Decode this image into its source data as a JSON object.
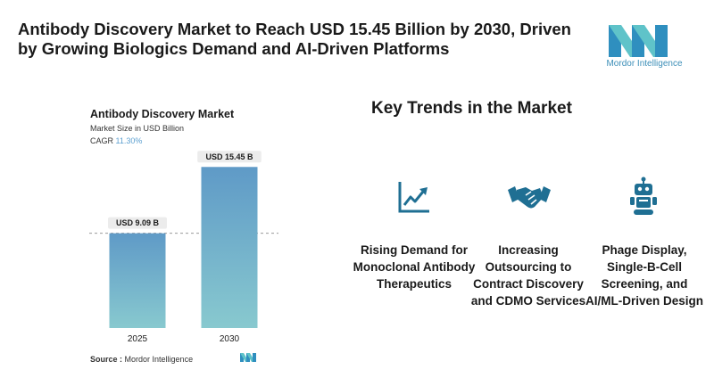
{
  "header": {
    "title": "Antibody Discovery Market to Reach USD 15.45 Billion by 2030, Driven by Growing Biologics Demand and AI-Driven Platforms",
    "logo_text": "Mordor Intelligence"
  },
  "chart_panel": {
    "title": "Antibody Discovery Market",
    "subtitle": "Market Size in USD Billion",
    "cagr_label": "CAGR",
    "cagr_value": "11.30%",
    "source_label": "Source :",
    "source_value": "Mordor Intelligence"
  },
  "chart_data": {
    "type": "bar",
    "title": "Antibody Discovery Market",
    "ylabel": "Market Size in USD Billion",
    "categories": [
      "2025",
      "2030"
    ],
    "values": [
      9.09,
      15.45
    ],
    "data_labels": [
      "USD 9.09 B",
      "USD 15.45 B"
    ],
    "ylim": [
      0,
      16.5
    ],
    "reference_line": 9.09,
    "grid": false
  },
  "trends": {
    "title": "Key Trends in the Market",
    "items": [
      {
        "icon": "chart-growth-icon",
        "label": "Rising Demand for Monoclonal Antibody Therapeutics"
      },
      {
        "icon": "handshake-icon",
        "label": "Increasing Outsourcing to Contract Discovery and CDMO Services"
      },
      {
        "icon": "robot-icon",
        "label": "Phage Display, Single-B-Cell Screening, and AI/ML-Driven Design"
      }
    ]
  },
  "colors": {
    "bar_top": "#5f9ac7",
    "bar_bottom": "#88c9cf",
    "icon": "#1f6f93",
    "accent": "#3d8fb8"
  }
}
